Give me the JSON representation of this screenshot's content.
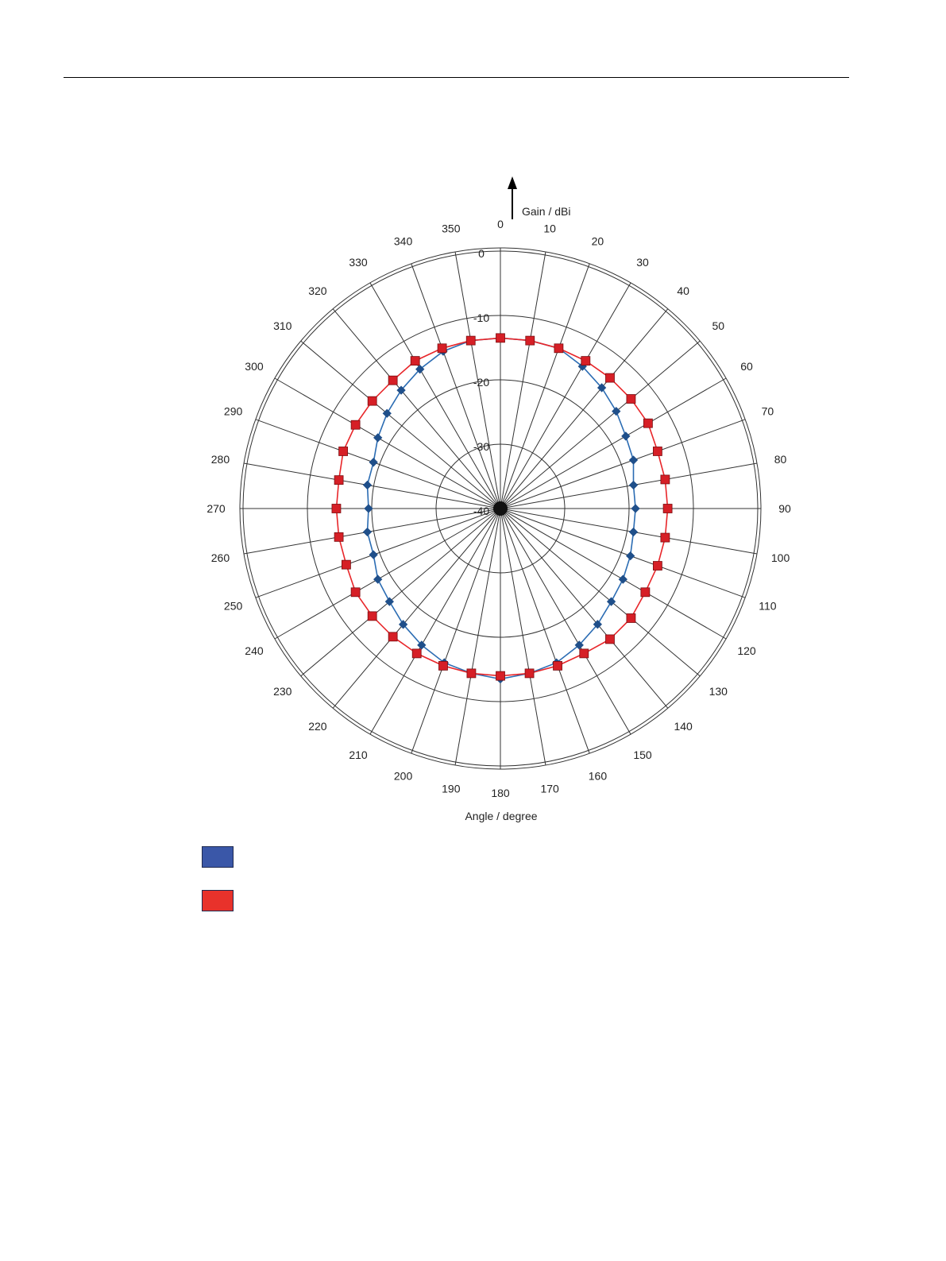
{
  "chart_data": {
    "type": "polar-line",
    "radial_axis_label": "Gain / dBi",
    "angular_axis_label": "Angle / degree",
    "radial_range": [
      -40,
      0
    ],
    "radial_ticks": [
      {
        "value": 0,
        "label": "0"
      },
      {
        "value": -10,
        "label": "-10"
      },
      {
        "value": -20,
        "label": "-20"
      },
      {
        "value": -30,
        "label": "-30"
      },
      {
        "value": -40,
        "label": "-40"
      }
    ],
    "angle_ticks": [
      "0",
      "10",
      "20",
      "30",
      "40",
      "50",
      "60",
      "70",
      "80",
      "90",
      "100",
      "110",
      "120",
      "130",
      "140",
      "150",
      "160",
      "170",
      "180",
      "190",
      "200",
      "210",
      "220",
      "230",
      "240",
      "250",
      "260",
      "270",
      "280",
      "290",
      "300",
      "310",
      "320",
      "330",
      "340",
      "350"
    ],
    "angles": [
      0,
      10,
      20,
      30,
      40,
      50,
      60,
      70,
      80,
      90,
      100,
      110,
      120,
      130,
      140,
      150,
      160,
      170,
      180,
      190,
      200,
      210,
      220,
      230,
      240,
      250,
      260,
      270,
      280,
      290,
      300,
      310,
      320,
      330,
      340,
      350
    ],
    "grid": true,
    "series": [
      {
        "color": "#2b6cb3",
        "marker_color": "#1f4f8a",
        "marker": "diamond",
        "values": [
          -13.5,
          -13.5,
          -13.5,
          -14.5,
          -15.5,
          -16.5,
          -17.5,
          -18.0,
          -19.0,
          -19.0,
          -19.0,
          -18.5,
          -18.0,
          -17.5,
          -16.5,
          -15.5,
          -14.5,
          -14.0,
          -13.5,
          -14.0,
          -14.5,
          -15.5,
          -16.5,
          -17.5,
          -18.0,
          -19.0,
          -19.0,
          -19.5,
          -19.0,
          -19.0,
          -18.0,
          -17.0,
          -16.0,
          -15.0,
          -14.0,
          -13.5
        ]
      },
      {
        "color": "#e8262a",
        "marker_color": "#d61f26",
        "marker": "square",
        "values": [
          -13.5,
          -13.5,
          -13.5,
          -13.5,
          -13.5,
          -13.5,
          -13.5,
          -14.0,
          -14.0,
          -14.0,
          -14.0,
          -14.0,
          -14.0,
          -13.5,
          -13.5,
          -14.0,
          -14.0,
          -14.0,
          -14.0,
          -14.0,
          -14.0,
          -14.0,
          -14.0,
          -14.0,
          -14.0,
          -14.5,
          -14.5,
          -14.5,
          -14.5,
          -14.0,
          -14.0,
          -14.0,
          -14.0,
          -13.5,
          -13.5,
          -13.5
        ]
      }
    ]
  },
  "legend": [
    {
      "color": "#3a57a8"
    },
    {
      "color": "#e8322b"
    }
  ]
}
